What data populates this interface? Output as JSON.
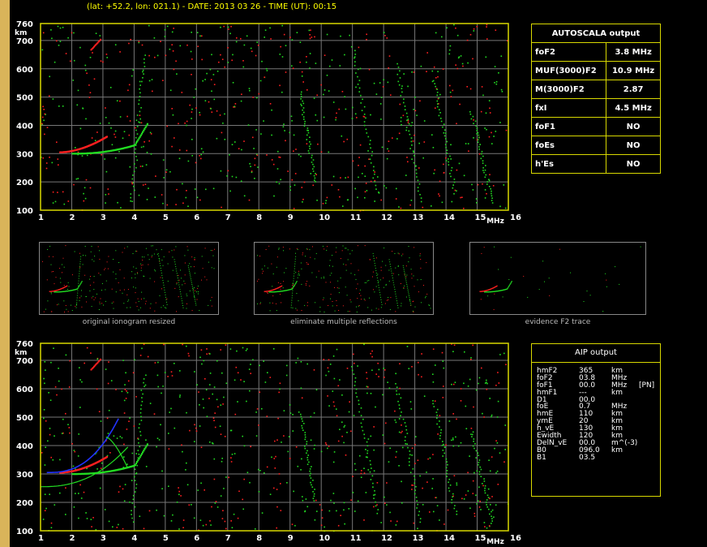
{
  "header": {
    "text": "(lat: +52.2, lon: 021.1) - DATE: 2013 03 26 - TIME (UT): 00:15"
  },
  "axes": {
    "y_unit": "km",
    "x_unit": "MHz",
    "y_ticks": [
      "760",
      "700",
      "600",
      "500",
      "400",
      "300",
      "200",
      "100"
    ],
    "x_ticks": [
      "1",
      "2",
      "3",
      "4",
      "5",
      "6",
      "7",
      "8",
      "9",
      "10",
      "11",
      "12",
      "13",
      "14",
      "15",
      "16"
    ]
  },
  "colors": {
    "axis": "#d8d800",
    "grid": "#777777",
    "o_trace": "#ff2020",
    "x_trace": "#22dd22",
    "blue_fit": "#2233ff"
  },
  "autoscala": {
    "title": "AUTOSCALA output",
    "rows": [
      {
        "label": "foF2",
        "value": "3.8 MHz"
      },
      {
        "label": "MUF(3000)F2",
        "value": "10.9 MHz"
      },
      {
        "label": "M(3000)F2",
        "value": "2.87"
      },
      {
        "label": "fxI",
        "value": "4.5 MHz"
      },
      {
        "label": "foF1",
        "value": "NO"
      },
      {
        "label": "foEs",
        "value": "NO"
      },
      {
        "label": "h'Es",
        "value": "NO"
      }
    ]
  },
  "thumbnails": [
    {
      "caption": "original ionogram resized"
    },
    {
      "caption": "eliminate multiple reflections"
    },
    {
      "caption": "evidence F2 trace"
    }
  ],
  "aip": {
    "title": "AIP output",
    "rows": [
      {
        "name": "hmF2",
        "value": "365",
        "unit": "km",
        "extra": ""
      },
      {
        "name": "foF2",
        "value": "03.8",
        "unit": "MHz",
        "extra": ""
      },
      {
        "name": "foF1",
        "value": "00.0",
        "unit": "MHz",
        "extra": "[PN]"
      },
      {
        "name": "hmF1",
        "value": "---",
        "unit": "km",
        "extra": ""
      },
      {
        "name": "D1",
        "value": "00.0",
        "unit": "",
        "extra": ""
      },
      {
        "name": "foE",
        "value": "0.7",
        "unit": "MHz",
        "extra": ""
      },
      {
        "name": "hmE",
        "value": "110",
        "unit": "km",
        "extra": ""
      },
      {
        "name": "ymE",
        "value": "20",
        "unit": "km",
        "extra": ""
      },
      {
        "name": "h_vE",
        "value": "130",
        "unit": "km",
        "extra": ""
      },
      {
        "name": "Ewidth",
        "value": "120",
        "unit": "km",
        "extra": ""
      },
      {
        "name": "DelN_vE",
        "value": "00.0",
        "unit": "m^(-3)",
        "extra": ""
      },
      {
        "name": "B0",
        "value": "096.0",
        "unit": "km",
        "extra": ""
      },
      {
        "name": "B1",
        "value": "03.5",
        "unit": "",
        "extra": ""
      }
    ]
  }
}
